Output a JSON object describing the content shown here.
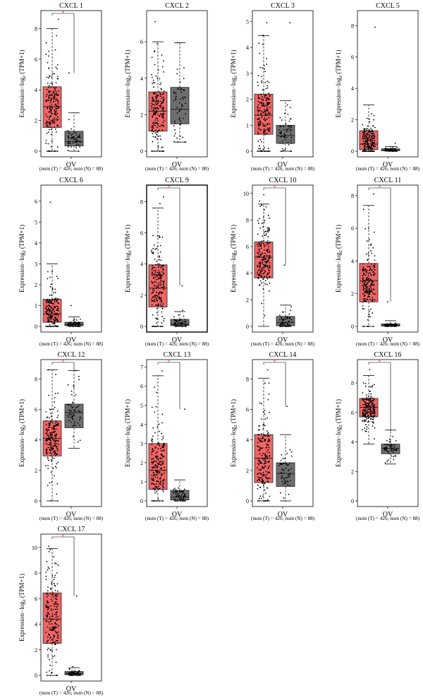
{
  "figure": {
    "ylabel_prefix": "Expression−log",
    "ylabel_sub": "2",
    "ylabel_suffix": " (TPM+1)",
    "xlabel": "OV",
    "count_label": "(num (T) = 426; num (N) = 88)",
    "sig_marker": "*"
  },
  "colors": {
    "tumor_box": "#ef6464",
    "normal_box": "#6e6e6e",
    "significance": "#ee6666",
    "points": "#000000",
    "frame": "#000000"
  },
  "chart_data": [
    {
      "type": "box",
      "title": "CXCL 1",
      "ylim": [
        0,
        8.8
      ],
      "yticks": [
        0,
        2,
        4,
        6,
        8
      ],
      "significant": true,
      "series": [
        {
          "group": "T",
          "q1": 1.55,
          "median": 2.9,
          "q3": 4.2,
          "whisker_low": 0.0,
          "whisker_high": 8.0,
          "max": 8.6
        },
        {
          "group": "N",
          "q1": 0.35,
          "median": 0.62,
          "q3": 1.3,
          "whisker_low": 0.0,
          "whisker_high": 2.5,
          "max": 5.1
        }
      ]
    },
    {
      "type": "box",
      "title": "CXCL 2",
      "ylim": [
        0,
        7.4
      ],
      "yticks": [
        0,
        2,
        4,
        6
      ],
      "significant": false,
      "series": [
        {
          "group": "T",
          "q1": 1.1,
          "median": 2.2,
          "q3": 3.25,
          "whisker_low": 0.0,
          "whisker_high": 6.0,
          "max": 7.1
        },
        {
          "group": "N",
          "q1": 1.5,
          "median": 2.3,
          "q3": 3.5,
          "whisker_low": 0.5,
          "whisker_high": 5.95,
          "max": 5.95
        }
      ]
    },
    {
      "type": "box",
      "title": "CXCL 3",
      "ylim": [
        0,
        5.2
      ],
      "yticks": [
        0,
        1,
        2,
        3,
        4,
        5
      ],
      "significant": false,
      "series": [
        {
          "group": "T",
          "q1": 0.65,
          "median": 1.38,
          "q3": 2.2,
          "whisker_low": 0.0,
          "whisker_high": 4.45,
          "max": 4.95
        },
        {
          "group": "N",
          "q1": 0.3,
          "median": 0.6,
          "q3": 1.0,
          "whisker_low": 0.0,
          "whisker_high": 1.95,
          "max": 4.95
        }
      ]
    },
    {
      "type": "box",
      "title": "CXCL 5",
      "ylim": [
        0,
        8.6
      ],
      "yticks": [
        0,
        2,
        4,
        6,
        8
      ],
      "significant": false,
      "series": [
        {
          "group": "T",
          "q1": 0.1,
          "median": 0.45,
          "q3": 1.3,
          "whisker_low": 0.0,
          "whisker_high": 2.95,
          "max": 7.9
        },
        {
          "group": "N",
          "q1": 0.03,
          "median": 0.06,
          "q3": 0.15,
          "whisker_low": 0.0,
          "whisker_high": 0.3,
          "max": 0.5
        }
      ]
    },
    {
      "type": "box",
      "title": "CXCL 6",
      "ylim": [
        0,
        6.5
      ],
      "yticks": [
        0,
        1,
        2,
        3,
        4,
        5,
        6
      ],
      "significant": false,
      "series": [
        {
          "group": "T",
          "q1": 0.2,
          "median": 0.6,
          "q3": 1.3,
          "whisker_low": 0.0,
          "whisker_high": 3.0,
          "max": 5.95
        },
        {
          "group": "N",
          "q1": 0.03,
          "median": 0.09,
          "q3": 0.2,
          "whisker_low": 0.0,
          "whisker_high": 0.45,
          "max": 1.0
        }
      ]
    },
    {
      "type": "box",
      "title": "CXCL 9",
      "ylim": [
        0,
        8.7
      ],
      "yticks": [
        0,
        2,
        4,
        6,
        8
      ],
      "significant": true,
      "series": [
        {
          "group": "T",
          "q1": 1.25,
          "median": 2.45,
          "q3": 3.95,
          "whisker_low": 0.0,
          "whisker_high": 7.6,
          "max": 8.3
        },
        {
          "group": "N",
          "q1": 0.05,
          "median": 0.15,
          "q3": 0.45,
          "whisker_low": 0.0,
          "whisker_high": 0.95,
          "max": 2.6
        }
      ]
    },
    {
      "type": "box",
      "title": "CXCL 10",
      "ylim": [
        0,
        10.2
      ],
      "yticks": [
        0,
        2,
        4,
        6,
        8,
        10
      ],
      "significant": true,
      "series": [
        {
          "group": "T",
          "q1": 3.65,
          "median": 5.2,
          "q3": 6.35,
          "whisker_low": 0.0,
          "whisker_high": 9.2,
          "max": 9.9
        },
        {
          "group": "N",
          "q1": 0.05,
          "median": 0.3,
          "q3": 0.75,
          "whisker_low": 0.0,
          "whisker_high": 1.6,
          "max": 4.6
        }
      ]
    },
    {
      "type": "box",
      "title": "CXCL 11",
      "ylim": [
        0,
        8.3
      ],
      "yticks": [
        0,
        2,
        4,
        6,
        8
      ],
      "significant": true,
      "series": [
        {
          "group": "T",
          "q1": 1.5,
          "median": 2.8,
          "q3": 3.85,
          "whisker_low": 0.0,
          "whisker_high": 7.4,
          "max": 8.1
        },
        {
          "group": "N",
          "q1": 0.02,
          "median": 0.05,
          "q3": 0.15,
          "whisker_low": 0.0,
          "whisker_high": 0.35,
          "max": 1.5
        }
      ]
    },
    {
      "type": "box",
      "title": "CXCL 12",
      "ylim": [
        0,
        8.9
      ],
      "yticks": [
        0,
        2,
        4,
        6,
        8
      ],
      "significant": true,
      "series": [
        {
          "group": "T",
          "q1": 2.95,
          "median": 4.1,
          "q3": 5.25,
          "whisker_low": 0.0,
          "whisker_high": 8.6,
          "max": 8.6
        },
        {
          "group": "N",
          "q1": 4.8,
          "median": 5.8,
          "q3": 6.35,
          "whisker_low": 3.45,
          "whisker_high": 8.55,
          "max": 8.55
        }
      ]
    },
    {
      "type": "box",
      "title": "CXCL 13",
      "ylim": [
        0,
        7.1
      ],
      "yticks": [
        0,
        1,
        2,
        3,
        4,
        5,
        6,
        7
      ],
      "significant": true,
      "series": [
        {
          "group": "T",
          "q1": 0.6,
          "median": 1.6,
          "q3": 3.0,
          "whisker_low": 0.0,
          "whisker_high": 6.55,
          "max": 6.8
        },
        {
          "group": "N",
          "q1": 0.05,
          "median": 0.2,
          "q3": 0.55,
          "whisker_low": 0.0,
          "whisker_high": 1.1,
          "max": 4.8
        }
      ]
    },
    {
      "type": "box",
      "title": "CXCL 14",
      "ylim": [
        0,
        8.9
      ],
      "yticks": [
        0,
        2,
        4,
        6,
        8
      ],
      "significant": true,
      "series": [
        {
          "group": "T",
          "q1": 1.2,
          "median": 2.8,
          "q3": 4.35,
          "whisker_low": 0.0,
          "whisker_high": 8.05,
          "max": 8.6
        },
        {
          "group": "N",
          "q1": 0.95,
          "median": 1.8,
          "q3": 2.5,
          "whisker_low": 0.0,
          "whisker_high": 4.35,
          "max": 6.2
        }
      ]
    },
    {
      "type": "box",
      "title": "CXCL 16",
      "ylim": [
        0,
        9.2
      ],
      "yticks": [
        0,
        2,
        4,
        6,
        8
      ],
      "significant": true,
      "series": [
        {
          "group": "T",
          "q1": 5.7,
          "median": 6.35,
          "q3": 6.95,
          "whisker_low": 3.85,
          "whisker_high": 8.5,
          "max": 8.9
        },
        {
          "group": "N",
          "q1": 3.2,
          "median": 3.55,
          "q3": 3.85,
          "whisker_low": 2.5,
          "whisker_high": 4.8,
          "max": 4.8
        }
      ]
    },
    {
      "type": "box",
      "title": "CXCL 17",
      "ylim": [
        0,
        10.6
      ],
      "yticks": [
        0,
        2,
        4,
        6,
        8,
        10
      ],
      "significant": true,
      "series": [
        {
          "group": "T",
          "q1": 2.5,
          "median": 4.4,
          "q3": 6.45,
          "whisker_low": 0.0,
          "whisker_high": 9.9,
          "max": 10.1
        },
        {
          "group": "N",
          "q1": 0.05,
          "median": 0.15,
          "q3": 0.3,
          "whisker_low": 0.0,
          "whisker_high": 0.6,
          "max": 6.2
        }
      ]
    }
  ]
}
